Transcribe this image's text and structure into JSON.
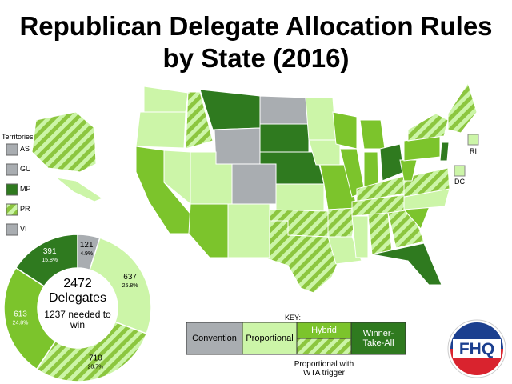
{
  "title_lines": [
    "Republican Delegate Allocation Rules",
    "by State (2016)"
  ],
  "territories": {
    "heading": "Territories",
    "items": [
      {
        "label": "AS",
        "color": "#a9adb1",
        "hatched": false
      },
      {
        "label": "GU",
        "color": "#a9adb1",
        "hatched": false
      },
      {
        "label": "MP",
        "color": "#2f7a1f",
        "hatched": false
      },
      {
        "label": "PR",
        "color": "#ccf5a8",
        "hatched": true
      },
      {
        "label": "VI",
        "color": "#a9adb1",
        "hatched": false
      }
    ]
  },
  "map_labels": [
    "RI",
    "DC"
  ],
  "key": {
    "heading": "KEY:",
    "items": [
      "Convention",
      "Proportional",
      "Hybrid",
      "Winner-Take-All"
    ],
    "trigger_label": "Proportional with WTA trigger"
  },
  "chart_data": {
    "type": "donut",
    "values": [
      121,
      637,
      710,
      613,
      391
    ],
    "percent_labels": [
      "4.9%",
      "25.8%",
      "28.7%",
      "24.8%",
      "15.8%"
    ],
    "colors": [
      "#a9adb1",
      "#ccf5a8",
      "#ccf5a8",
      "#7cc42c",
      "#2f7a1f"
    ],
    "hatched": [
      false,
      false,
      true,
      false,
      false
    ],
    "total": 2472,
    "total_label": "Delegates",
    "needed": 1237,
    "needed_label": "needed to win"
  },
  "logo": "FHQ"
}
